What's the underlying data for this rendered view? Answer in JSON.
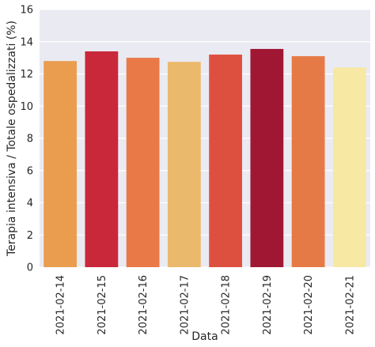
{
  "chart_data": {
    "type": "bar",
    "title": "",
    "xlabel": "Data",
    "ylabel": "Terapia intensiva / Totale ospedalizzati (%)",
    "categories": [
      "2021-02-14",
      "2021-02-15",
      "2021-02-16",
      "2021-02-17",
      "2021-02-18",
      "2021-02-19",
      "2021-02-20",
      "2021-02-21"
    ],
    "values": [
      12.8,
      13.4,
      13.0,
      12.75,
      13.2,
      13.55,
      13.1,
      12.4
    ],
    "ylim": [
      0,
      16
    ],
    "yticks": [
      0,
      2,
      4,
      6,
      8,
      10,
      12,
      14,
      16
    ],
    "grid": true,
    "legend": "none",
    "colors": [
      "#ea9d4f",
      "#c8283a",
      "#e97a47",
      "#ebb96b",
      "#dd5040",
      "#a01733",
      "#e67a47",
      "#f7e8a4"
    ],
    "plot_background": "#eaeaf2",
    "grid_color": "#ffffff"
  }
}
